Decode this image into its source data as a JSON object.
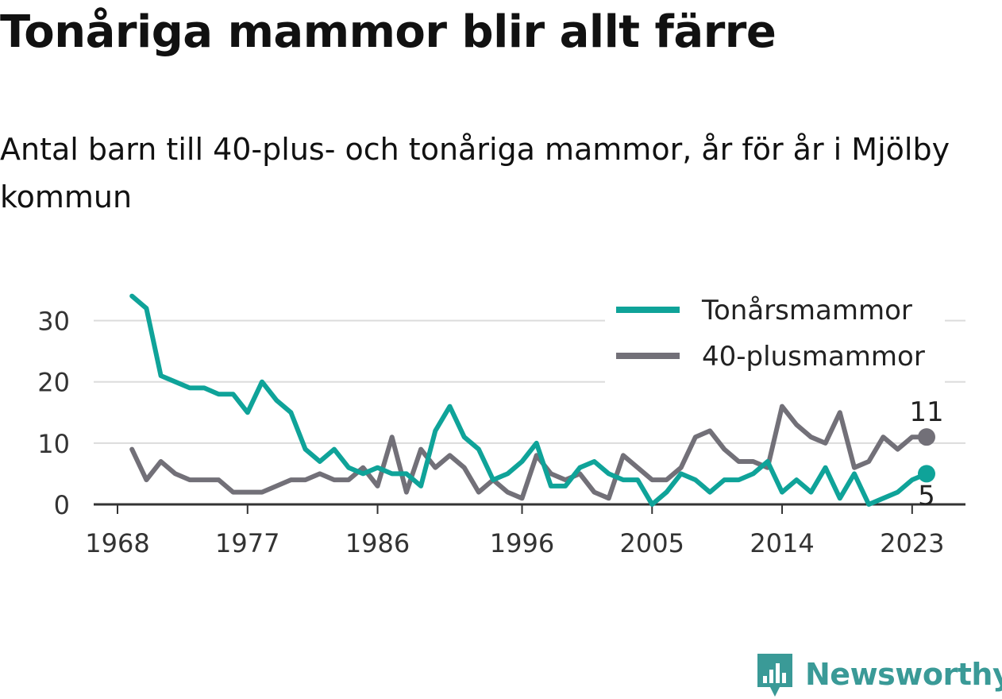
{
  "title": "Tonåriga mammor blir allt färre",
  "subtitle": "Antal barn till 40-plus- och tonåriga mammor, år för år i Mjölby kommun",
  "brand": {
    "name": "Newsworthy",
    "icon": "newsworthy-logo-icon",
    "color": "#3a9a97"
  },
  "chart_data": {
    "type": "line",
    "x": [
      1969,
      1970,
      1971,
      1972,
      1973,
      1974,
      1975,
      1976,
      1977,
      1978,
      1979,
      1980,
      1981,
      1982,
      1983,
      1984,
      1985,
      1986,
      1987,
      1988,
      1989,
      1990,
      1991,
      1992,
      1993,
      1994,
      1995,
      1996,
      1997,
      1998,
      1999,
      2000,
      2001,
      2002,
      2003,
      2004,
      2005,
      2006,
      2007,
      2008,
      2009,
      2010,
      2011,
      2012,
      2013,
      2014,
      2015,
      2016,
      2017,
      2018,
      2019,
      2020,
      2021,
      2022,
      2023,
      2024
    ],
    "x_ticks": [
      "1968",
      "1977",
      "1986",
      "1996",
      "2005",
      "2014",
      "2023"
    ],
    "y_ticks": [
      "0",
      "10",
      "20",
      "30"
    ],
    "ylim": [
      0,
      35
    ],
    "xlim": [
      1968,
      2027
    ],
    "grid": true,
    "legend_position": "top-right",
    "series": [
      {
        "name": "Tonårsmammor",
        "color": "#0fa399",
        "values": [
          34,
          32,
          21,
          20,
          19,
          19,
          18,
          18,
          15,
          20,
          17,
          15,
          9,
          7,
          9,
          6,
          5,
          6,
          5,
          5,
          3,
          12,
          16,
          11,
          9,
          4,
          5,
          7,
          10,
          3,
          3,
          6,
          7,
          5,
          4,
          4,
          0,
          2,
          5,
          4,
          2,
          4,
          4,
          5,
          7,
          2,
          4,
          2,
          6,
          1,
          5,
          0,
          1,
          2,
          4,
          5
        ],
        "end_label": "5"
      },
      {
        "name": "40-plusmammor",
        "color": "#727078",
        "values": [
          9,
          4,
          7,
          5,
          4,
          4,
          4,
          2,
          2,
          2,
          3,
          4,
          4,
          5,
          4,
          4,
          6,
          3,
          11,
          2,
          9,
          6,
          8,
          6,
          2,
          4,
          2,
          1,
          8,
          5,
          4,
          5,
          2,
          1,
          8,
          6,
          4,
          4,
          6,
          11,
          12,
          9,
          7,
          7,
          6,
          16,
          13,
          11,
          10,
          15,
          6,
          7,
          11,
          9,
          11,
          11
        ],
        "end_label": "11"
      }
    ]
  }
}
